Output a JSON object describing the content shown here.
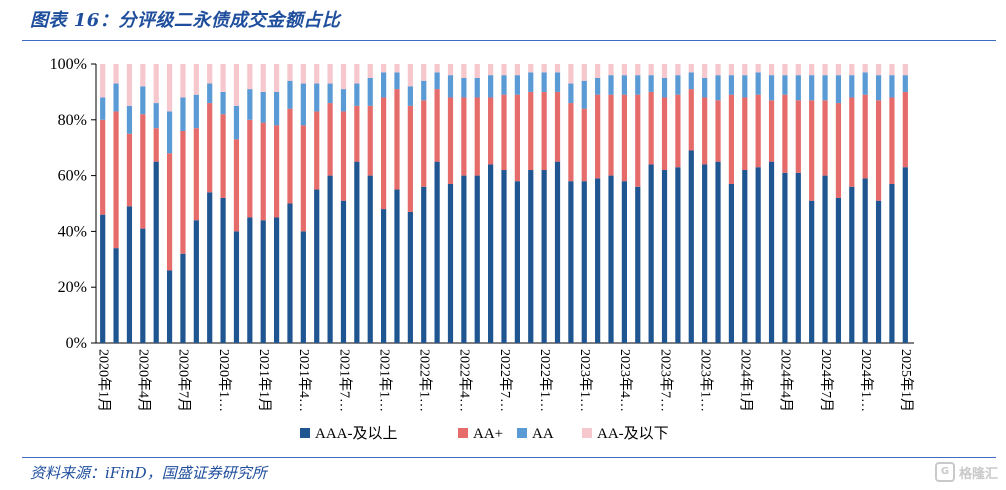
{
  "header": {
    "title": "图表 16：分评级二永债成交金额占比"
  },
  "footer": {
    "source": "资料来源：iFinD，国盛证券研究所",
    "watermark": "格隆汇",
    "watermark_icon": "G"
  },
  "colors": {
    "AAA": "#1f5591",
    "AA+": "#e66b6b",
    "AA": "#5b9bd5",
    "AA-": "#f6c7cc"
  },
  "chart_data": {
    "type": "bar",
    "stacked": true,
    "ylim": [
      0,
      100
    ],
    "yticks": [
      "0%",
      "20%",
      "40%",
      "60%",
      "80%",
      "100%"
    ],
    "xtick_labels": [
      "2020年1月",
      "2020年4月",
      "2020年7月",
      "2020年1…",
      "2021年1月",
      "2021年4…",
      "2021年7…",
      "2021年1…",
      "2022年1…",
      "2022年4…",
      "2022年7…",
      "2022年1…",
      "2023年1…",
      "2023年4…",
      "2023年7…",
      "2023年1…",
      "2024年1月",
      "2024年4月",
      "2024年7月",
      "2024年1…",
      "2025年1月"
    ],
    "legend": [
      "AAA-及以上",
      "AA+",
      "AA",
      "AA-及以下"
    ],
    "legend_placement": "bottom",
    "series": [
      {
        "name": "AAA-及以上",
        "values": [
          46,
          34,
          49,
          41,
          65,
          26,
          32,
          44,
          54,
          52,
          40,
          45,
          44,
          45,
          50,
          40,
          55,
          60,
          51,
          65,
          60,
          48,
          55,
          47,
          56,
          65,
          57,
          60,
          60,
          64,
          62,
          58,
          62,
          62,
          65,
          58,
          58,
          59,
          60,
          58,
          56,
          64,
          62,
          63,
          69,
          64,
          65,
          57,
          62,
          63,
          65,
          61,
          61,
          51,
          60,
          52,
          56,
          59,
          51,
          57,
          63
        ]
      },
      {
        "name": "AA+",
        "values": [
          34,
          49,
          26,
          41,
          12,
          42,
          44,
          33,
          32,
          30,
          33,
          35,
          35,
          33,
          34,
          38,
          28,
          26,
          32,
          20,
          25,
          40,
          36,
          38,
          31,
          26,
          31,
          28,
          28,
          24,
          27,
          31,
          28,
          28,
          25,
          28,
          26,
          30,
          29,
          31,
          33,
          26,
          26,
          26,
          22,
          24,
          22,
          32,
          26,
          26,
          22,
          28,
          26,
          36,
          27,
          34,
          32,
          30,
          36,
          31,
          27
        ]
      },
      {
        "name": "AA",
        "values": [
          8,
          10,
          10,
          10,
          9,
          15,
          12,
          12,
          7,
          8,
          12,
          11,
          11,
          12,
          10,
          15,
          10,
          7,
          8,
          8,
          10,
          9,
          6,
          7,
          7,
          6,
          8,
          7,
          7,
          8,
          7,
          7,
          7,
          7,
          7,
          7,
          10,
          6,
          7,
          7,
          7,
          6,
          7,
          7,
          6,
          7,
          9,
          7,
          8,
          8,
          9,
          7,
          9,
          9,
          9,
          10,
          8,
          8,
          9,
          8,
          6
        ]
      },
      {
        "name": "AA-及以下",
        "values": [
          12,
          7,
          15,
          8,
          14,
          17,
          12,
          11,
          7,
          10,
          15,
          9,
          10,
          10,
          6,
          7,
          7,
          7,
          9,
          7,
          5,
          3,
          3,
          8,
          6,
          3,
          4,
          5,
          5,
          4,
          4,
          4,
          3,
          3,
          3,
          7,
          6,
          5,
          4,
          4,
          4,
          4,
          5,
          4,
          3,
          5,
          4,
          4,
          4,
          3,
          4,
          4,
          4,
          4,
          4,
          4,
          4,
          3,
          4,
          4,
          4
        ]
      }
    ]
  }
}
